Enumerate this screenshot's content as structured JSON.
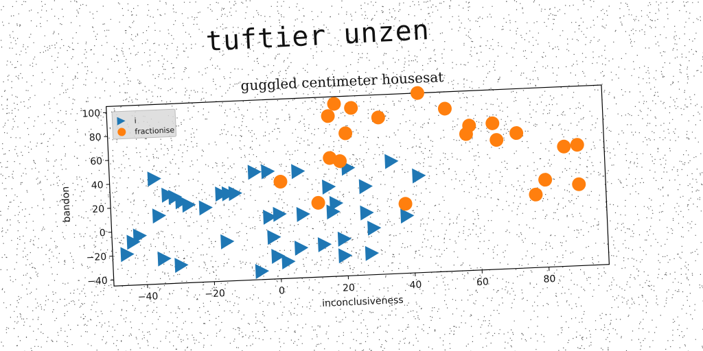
{
  "header": {
    "title": "tuftier unzen"
  },
  "chart_data": {
    "type": "scatter",
    "title": "guggled centimeter housesat",
    "xlabel": "inconclusiveness",
    "ylabel": "bandon",
    "xlim": [
      -50,
      98
    ],
    "ylim": [
      -45,
      105
    ],
    "xticks": [
      -40,
      -20,
      0,
      20,
      40,
      60,
      80
    ],
    "yticks": [
      -40,
      -20,
      0,
      20,
      40,
      60,
      80,
      100
    ],
    "xtick_labels": [
      "−40",
      "−20",
      "0",
      "20",
      "40",
      "60",
      "80"
    ],
    "ytick_labels": [
      "−40",
      "−20",
      "0",
      "20",
      "40",
      "60",
      "80",
      "100"
    ],
    "grid": false,
    "legend": "top-left",
    "series": [
      {
        "name": "i",
        "marker": "triangle-right",
        "color": "#1f77b4",
        "points": [
          [
            -37,
            43
          ],
          [
            -33,
            29
          ],
          [
            -31,
            27
          ],
          [
            -29,
            23
          ],
          [
            -27,
            20
          ],
          [
            -22,
            17
          ],
          [
            -17,
            28
          ],
          [
            -15,
            28
          ],
          [
            -13,
            28
          ],
          [
            -36,
            12
          ],
          [
            -42,
            -4
          ],
          [
            -44,
            -9
          ],
          [
            -46,
            -19
          ],
          [
            -35,
            -24
          ],
          [
            -30,
            -30
          ],
          [
            -16,
            -12
          ],
          [
            -7,
            45
          ],
          [
            -3,
            45
          ],
          [
            6,
            44
          ],
          [
            21,
            45
          ],
          [
            15,
            30
          ],
          [
            26,
            29
          ],
          [
            34,
            49
          ],
          [
            42,
            36
          ],
          [
            -3,
            7
          ],
          [
            0,
            9
          ],
          [
            7,
            8
          ],
          [
            16,
            9
          ],
          [
            17,
            16
          ],
          [
            26,
            7
          ],
          [
            38,
            3
          ],
          [
            28,
            -6
          ],
          [
            -2,
            -10
          ],
          [
            13,
            -18
          ],
          [
            19,
            -14
          ],
          [
            6,
            -20
          ],
          [
            -1,
            -26
          ],
          [
            2,
            -31
          ],
          [
            19,
            -28
          ],
          [
            27,
            -27
          ],
          [
            -6,
            -38
          ]
        ]
      },
      {
        "name": "fractionise",
        "marker": "circle",
        "color": "#ff7f0e",
        "points": [
          [
            18,
            99
          ],
          [
            23,
            95
          ],
          [
            16,
            89
          ],
          [
            31,
            86
          ],
          [
            43,
            105
          ],
          [
            51,
            91
          ],
          [
            21,
            74
          ],
          [
            58,
            76
          ],
          [
            57,
            69
          ],
          [
            65,
            77
          ],
          [
            66,
            63
          ],
          [
            72,
            68
          ],
          [
            86,
            55
          ],
          [
            90,
            56
          ],
          [
            16,
            54
          ],
          [
            19,
            51
          ],
          [
            1,
            36
          ],
          [
            80,
            28
          ],
          [
            77,
            16
          ],
          [
            90,
            23
          ],
          [
            12,
            17
          ],
          [
            38,
            13
          ]
        ]
      }
    ]
  }
}
